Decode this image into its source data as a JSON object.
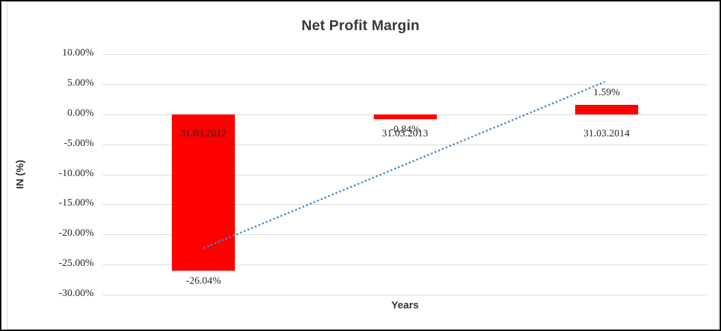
{
  "chart_data": {
    "type": "bar",
    "title": "Net Profit Margin",
    "xlabel": "Years",
    "ylabel": "IN (%)",
    "categories": [
      "31.03.2012",
      "31.03.2013",
      "31.03.2014"
    ],
    "values": [
      -26.04,
      -0.84,
      1.59
    ],
    "data_labels": [
      "-26.04%",
      "-0.84%",
      "1.59%"
    ],
    "ylim": [
      -30,
      10
    ],
    "ytick_step": 5,
    "ytick_labels": [
      "10.00%",
      "5.00%",
      "0.00%",
      "-5.00%",
      "-10.00%",
      "-15.00%",
      "-20.00%",
      "-25.00%",
      "-30.00%"
    ],
    "grid": true,
    "legend": false,
    "bar_color": "#FF0000",
    "gridline_color": "#D9D9D9",
    "text_color": "#262626",
    "title_color": "#3A3A3A",
    "frame_border_color": "#D9D9D9",
    "outer_border_color": "#000000",
    "trendline": {
      "type": "linear",
      "style": "dotted",
      "color": "#4A86C8",
      "start_value": -22.25,
      "end_value": 5.38
    }
  }
}
